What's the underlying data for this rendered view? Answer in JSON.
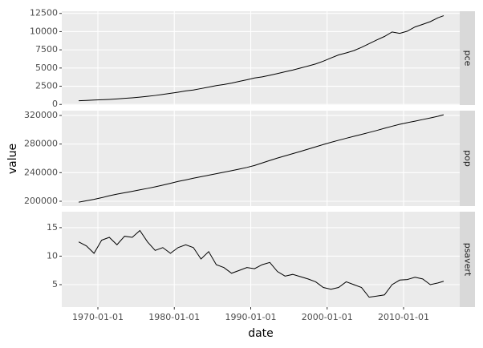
{
  "chart_data": {
    "type": "line",
    "x_label": "date",
    "y_label": "value",
    "grid": true,
    "x": [
      "1967-07-01",
      "1968-07-01",
      "1969-07-01",
      "1970-07-01",
      "1971-07-01",
      "1972-07-01",
      "1973-07-01",
      "1974-07-01",
      "1975-07-01",
      "1976-07-01",
      "1977-07-01",
      "1978-07-01",
      "1979-07-01",
      "1980-07-01",
      "1981-07-01",
      "1982-07-01",
      "1983-07-01",
      "1984-07-01",
      "1985-07-01",
      "1986-07-01",
      "1987-07-01",
      "1988-07-01",
      "1989-07-01",
      "1990-07-01",
      "1991-07-01",
      "1992-07-01",
      "1993-07-01",
      "1994-07-01",
      "1995-07-01",
      "1996-07-01",
      "1997-07-01",
      "1998-07-01",
      "1999-07-01",
      "2000-07-01",
      "2001-07-01",
      "2002-07-01",
      "2003-07-01",
      "2004-07-01",
      "2005-07-01",
      "2006-07-01",
      "2007-07-01",
      "2008-07-01",
      "2009-07-01",
      "2010-07-01",
      "2011-07-01",
      "2012-07-01",
      "2013-07-01",
      "2014-07-01",
      "2015-04-01"
    ],
    "xlim": [
      "1965-04-12",
      "2017-05-08"
    ],
    "xticks": [
      "1970-01-01",
      "1980-01-01",
      "1990-01-01",
      "2000-01-01",
      "2010-01-01"
    ],
    "series": [
      {
        "name": "pce",
        "color": "#000000",
        "ylim": [
          -85,
          12800
        ],
        "yticks": [
          0,
          2500,
          5000,
          7500,
          10000,
          12500
        ],
        "values": [
          507,
          550,
          600,
          640,
          690,
          760,
          840,
          910,
          1000,
          1110,
          1230,
          1370,
          1530,
          1680,
          1850,
          1980,
          2180,
          2380,
          2580,
          2740,
          2930,
          3160,
          3380,
          3630,
          3780,
          4000,
          4240,
          4490,
          4720,
          4990,
          5270,
          5560,
          5940,
          6380,
          6800,
          7070,
          7390,
          7840,
          8350,
          8860,
          9330,
          9950,
          9760,
          10060,
          10640,
          11000,
          11370,
          11900,
          12190
        ]
      },
      {
        "name": "pop",
        "color": "#000000",
        "ylim": [
          193270,
          326700
        ],
        "yticks": [
          200000,
          240000,
          280000,
          320000
        ],
        "values": [
          198700,
          200700,
          202700,
          205000,
          207700,
          209900,
          211900,
          213900,
          216000,
          218000,
          220200,
          222600,
          225100,
          227700,
          229900,
          232200,
          234300,
          236400,
          238500,
          240700,
          242800,
          245000,
          247300,
          250000,
          253500,
          257000,
          260400,
          263500,
          266600,
          269700,
          272900,
          276100,
          279300,
          282400,
          285300,
          288100,
          290800,
          293500,
          296200,
          299000,
          302000,
          304900,
          307600,
          309900,
          312000,
          314300,
          316500,
          318900,
          320900
        ]
      },
      {
        "name": "psavert",
        "color": "#000000",
        "ylim": [
          1.06,
          17.8
        ],
        "yticks": [
          5,
          10,
          15
        ],
        "values": [
          12.5,
          11.8,
          10.5,
          12.8,
          13.3,
          12.0,
          13.5,
          13.3,
          14.5,
          12.5,
          11.0,
          11.5,
          10.5,
          11.5,
          12.0,
          11.5,
          9.5,
          10.8,
          8.5,
          8.0,
          7.0,
          7.5,
          8.0,
          7.8,
          8.5,
          8.9,
          7.3,
          6.5,
          6.8,
          6.4,
          6.0,
          5.5,
          4.5,
          4.2,
          4.5,
          5.5,
          5.0,
          4.5,
          2.8,
          3.0,
          3.2,
          5.0,
          5.8,
          5.9,
          6.3,
          6.0,
          5.0,
          5.3,
          5.6
        ]
      }
    ]
  }
}
